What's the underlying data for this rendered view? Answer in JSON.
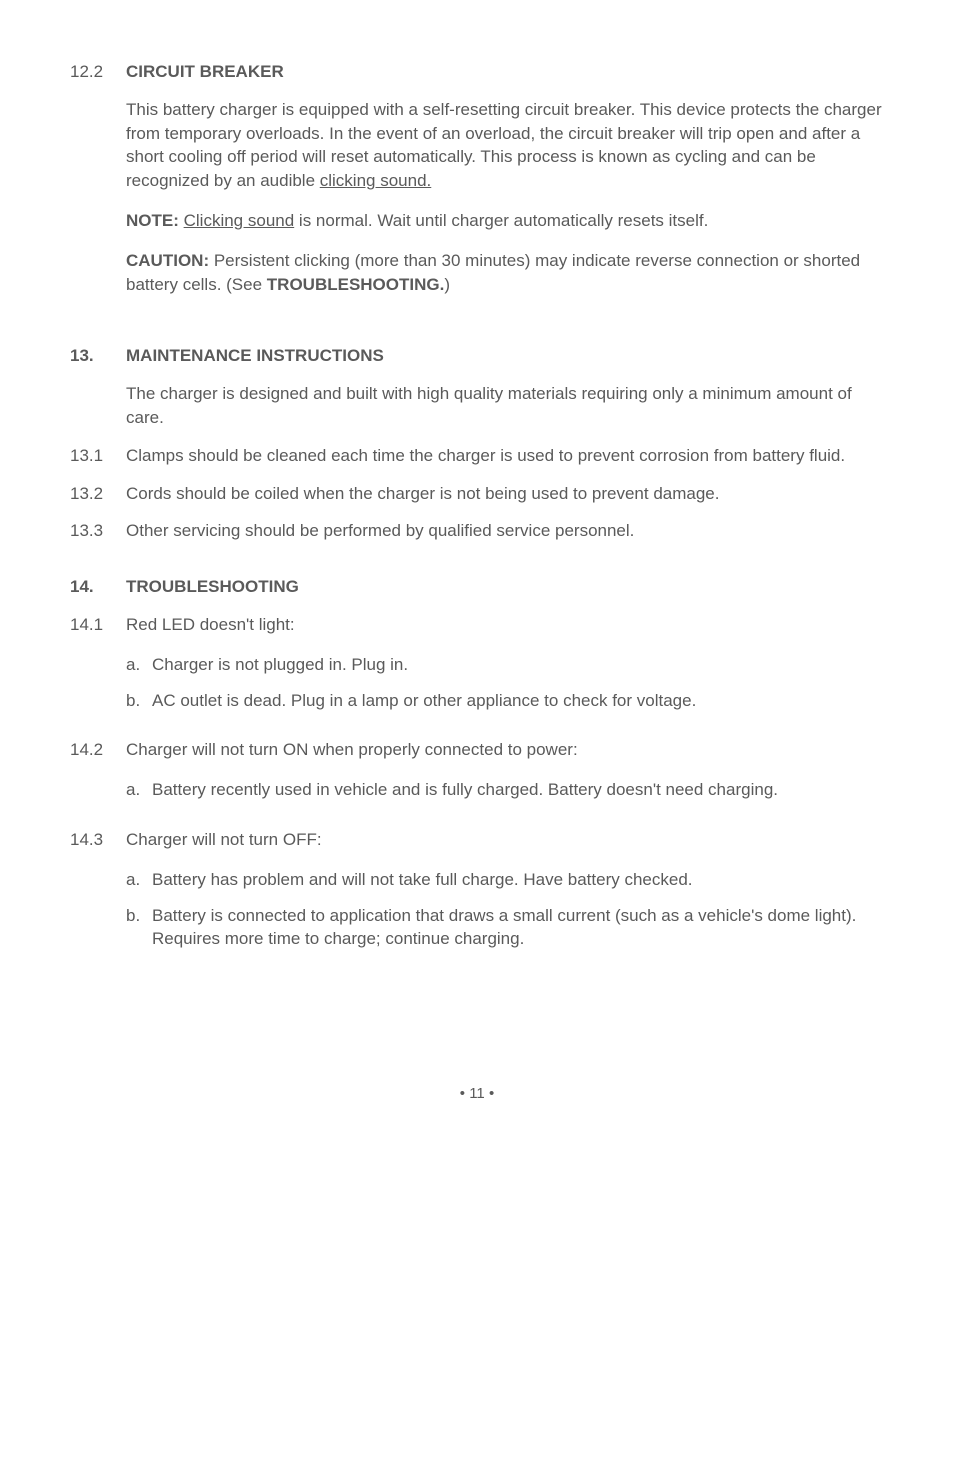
{
  "s12_2": {
    "num": "12.2",
    "title": "CIRCUIT BREAKER",
    "p1_a": "This battery charger is equipped with a self-resetting circuit breaker. This device protects the charger from temporary overloads. In the event of an overload, the circuit breaker will trip open and after a short cooling off period will reset automatically. This process is known as cycling and can be recognized by an audible ",
    "p1_u": "clicking sound.",
    "p2_label": "NOTE:",
    "p2_u": "Clicking sound",
    "p2_rest": " is normal. Wait until charger automatically resets itself.",
    "p3_label": "CAUTION:",
    "p3_mid": " Persistent clicking (more than 30 minutes) may indicate reverse connection or shorted battery cells. (See ",
    "p3_b": "TROUBLESHOOTING.",
    "p3_end": ")"
  },
  "s13": {
    "num": "13.",
    "title": "MAINTENANCE INSTRUCTIONS",
    "intro": "The charger is designed and built with high quality materials requiring only a minimum amount of care.",
    "i1_num": "13.1",
    "i1": "Clamps should be cleaned each time the charger is used to prevent corrosion from battery fluid.",
    "i2_num": "13.2",
    "i2": "Cords should be coiled when the charger is not being used to prevent damage.",
    "i3_num": "13.3",
    "i3": "Other servicing should be performed by qualified service personnel."
  },
  "s14": {
    "num": "14.",
    "title": "TROUBLESHOOTING",
    "i1_num": "14.1",
    "i1_t": "Red LED doesn't light:",
    "i1_a": "Charger is not plugged in. Plug in.",
    "i1_b": "AC outlet is dead. Plug in a lamp or other appliance to check for voltage.",
    "i2_num": "14.2",
    "i2_t": "Charger will not turn ON when properly connected to power:",
    "i2_a": "Battery recently used in vehicle and is fully charged. Battery doesn't need charging.",
    "i3_num": "14.3",
    "i3_t": "Charger will not turn OFF:",
    "i3_a": "Battery has problem and will not take full charge. Have battery checked.",
    "i3_b": "Battery is connected to application that draws a small current (such as a vehicle's dome light). Requires more time to charge; continue charging."
  },
  "letters": {
    "a": "a.",
    "b": "b."
  },
  "page": "• 11 •"
}
